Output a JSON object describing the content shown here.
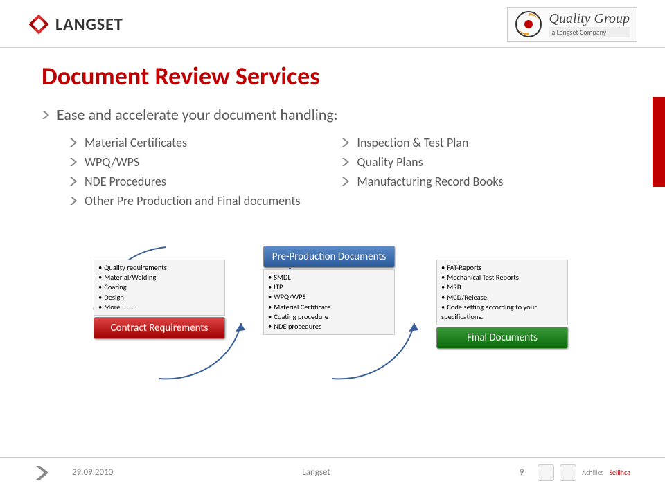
{
  "header": {
    "brand": "LANGSET",
    "quality_group_title": "Quality Group",
    "quality_group_sub": "a Langset Company"
  },
  "title": "Document Review Services",
  "subtitle": "Ease and accelerate your document handling:",
  "left_list": [
    "Material Certificates",
    "WPQ/WPS",
    "NDE Procedures",
    "Other Pre Production and Final documents"
  ],
  "right_list": [
    "Inspection & Test Plan",
    "Quality Plans",
    "Manufacturing Record Books"
  ],
  "diagram": {
    "stage1": {
      "header": "Contract Requirements",
      "header_color": "#b02020",
      "items": [
        "Quality requirements",
        "Material/Welding",
        "Coating",
        "Design",
        "More………"
      ]
    },
    "stage2": {
      "header": "Pre-Production Documents",
      "header_color": "#2f5e9e",
      "items": [
        "SMDL",
        "ITP",
        "WPQ/WPS",
        "Material Certificate",
        "Coating procedure",
        "NDE procedures"
      ]
    },
    "stage3": {
      "header": "Final Documents",
      "header_color": "#1a7a1a",
      "items": [
        "FAT-Reports",
        "Mechanical Test Reports",
        "MRB",
        "MCD/Release.",
        "Code setting according to your specifications."
      ]
    },
    "ring_color": "#3b5f9a"
  },
  "footer": {
    "date": "29.09.2010",
    "center": "Langset",
    "page": "9",
    "badges": [
      "cert1",
      "cert2",
      "Achilles",
      "Sellicha"
    ]
  },
  "colors": {
    "title": "#c00000",
    "text": "#595959",
    "accent_red": "#c00000"
  }
}
